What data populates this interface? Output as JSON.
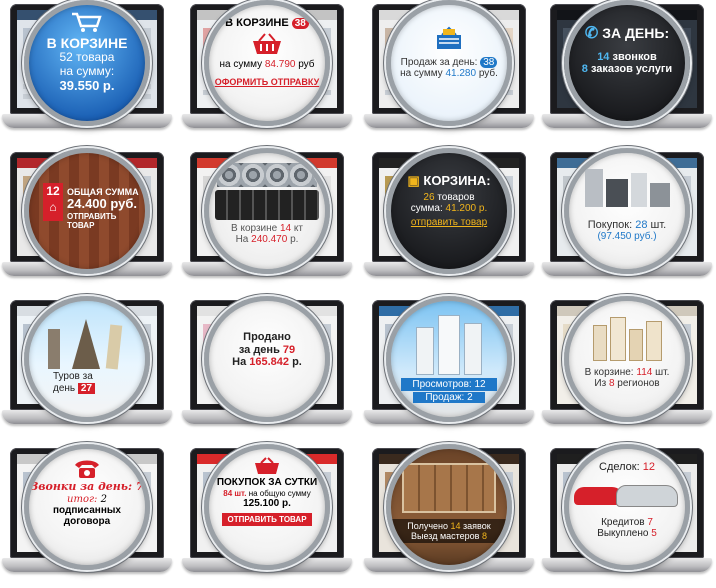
{
  "panels": [
    {
      "line1": "В КОРЗИНЕ",
      "line2": "52 товара",
      "line3": "на сумму:",
      "line4": "39.550 р."
    },
    {
      "title": "В КОРЗИНЕ",
      "badge": "38",
      "sum_label": "на сумму",
      "sum_value": "84.790",
      "sum_unit": "руб",
      "action": "ОФОРМИТЬ ОТПРАВКУ"
    },
    {
      "label": "Продаж за день:",
      "badge": "38",
      "sum_label": "на сумму",
      "sum_value": "41.280",
      "sum_unit": "руб."
    },
    {
      "title": "ЗА ДЕНЬ:",
      "calls_num": "14",
      "calls_label": "звонков",
      "orders_num": "8",
      "orders_label": "заказов услуги"
    },
    {
      "badge": "12",
      "line1": "ОБЩАЯ СУММА",
      "line2": "24.400 руб.",
      "line3": "ОТПРАВИТЬ ТОВАР"
    },
    {
      "label": "В корзине",
      "count": "14",
      "count_unit": "кт",
      "sum_label": "На",
      "sum_value": "240.470",
      "sum_unit": "р."
    },
    {
      "title": "КОРЗИНА:",
      "count": "26",
      "count_label": "товаров",
      "sum_label": "сумма:",
      "sum_value": "41.200 р.",
      "action": "отправить товар"
    },
    {
      "label": "Покупок:",
      "count": "28",
      "count_unit": "шт.",
      "sum": "(97.450 руб.)"
    },
    {
      "label_a": "Туров за",
      "label_b": "день",
      "badge": "27"
    },
    {
      "line1": "Продано",
      "line2a": "за день",
      "line2b": "79",
      "line3a": "На",
      "line3b": "165.842",
      "line3c": "р."
    },
    {
      "views_label": "Просмотров:",
      "views": "12",
      "sales_label": "Продаж:",
      "sales": "2"
    },
    {
      "cart_label": "В корзине:",
      "cart": "114",
      "cart_unit": "шт.",
      "regions_a": "Из",
      "regions_b": "8",
      "regions_c": "регионов"
    },
    {
      "calls": "Звонки за день: 7",
      "total_label": "итог:",
      "total": "2",
      "signed_a": "подписанных",
      "signed_b": "договора"
    },
    {
      "title": "ПОКУПОК ЗА СУТКИ",
      "line2a": "84 шт.",
      "line2b": "на общую сумму",
      "line3": "125.100 р.",
      "action": "ОТПРАВИТЬ ТОВАР"
    },
    {
      "line1a": "Получено",
      "line1b": "14",
      "line1c": "заявок",
      "line2a": "Выезд мастеров",
      "line2b": "8"
    },
    {
      "deals_label": "Сделок:",
      "deals": "12",
      "credits_label": "Кредитов",
      "credits": "7",
      "bought_label": "Выкуплено",
      "bought": "5"
    }
  ],
  "colors": {
    "red": "#d6202a",
    "blue": "#1f78c8",
    "gold": "#f1b51c",
    "dark": "#1b1b1e"
  }
}
